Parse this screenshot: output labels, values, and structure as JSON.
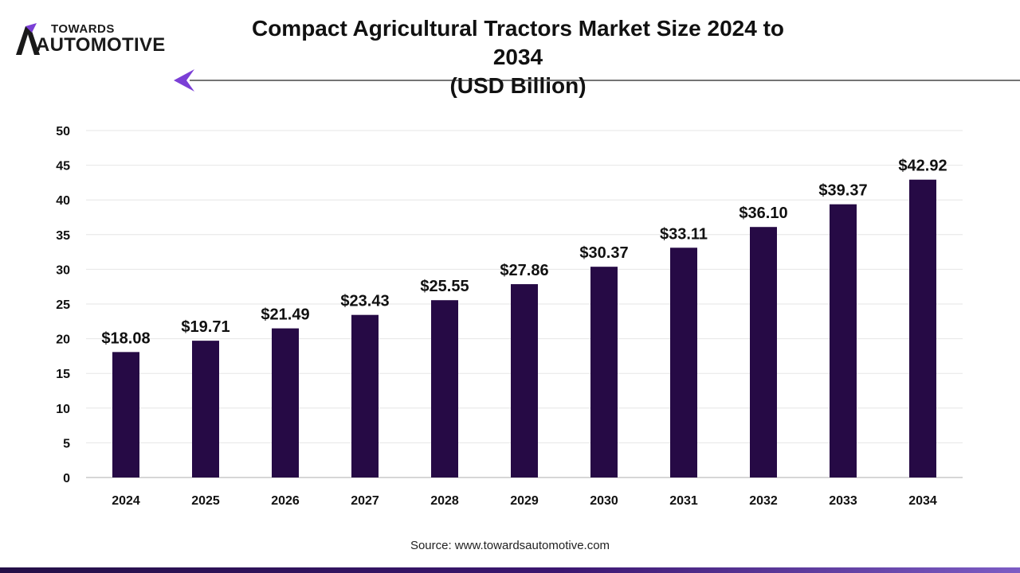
{
  "brand": {
    "logo_top": "TOWARDS",
    "logo_bottom": "AUTOMOTIVE",
    "accent_color": "#7b3fd6"
  },
  "header": {
    "title_line1": "Compact Agricultural Tractors Market Size 2024 to 2034",
    "title_line2": "(USD Billion)"
  },
  "source_text": "Source: www.towardsautomotive.com",
  "chart_data": {
    "type": "bar",
    "categories": [
      "2024",
      "2025",
      "2026",
      "2027",
      "2028",
      "2029",
      "2030",
      "2031",
      "2032",
      "2033",
      "2034"
    ],
    "values": [
      18.08,
      19.71,
      21.49,
      23.43,
      25.55,
      27.86,
      30.37,
      33.11,
      36.1,
      39.37,
      42.92
    ],
    "data_labels": [
      "$18.08",
      "$19.71",
      "$21.49",
      "$23.43",
      "$25.55",
      "$27.86",
      "$30.37",
      "$33.11",
      "$36.10",
      "$39.37",
      "$42.92"
    ],
    "ylim": [
      0,
      50
    ],
    "yticks": [
      0,
      5,
      10,
      15,
      20,
      25,
      30,
      35,
      40,
      45,
      50
    ],
    "grid": true,
    "bar_color": "#260a45"
  }
}
